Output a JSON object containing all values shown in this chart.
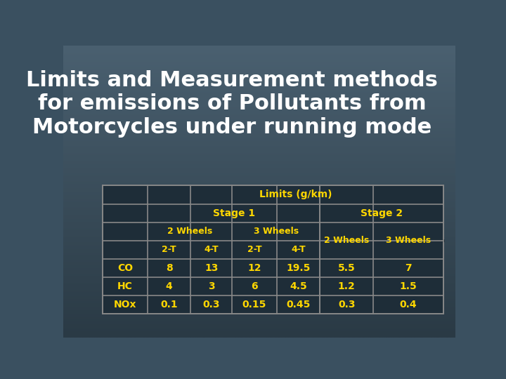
{
  "title": "Limits and Measurement methods\nfor emissions of Pollutants from\nMotorcycles under running mode",
  "title_color": "#FFFFFF",
  "title_fontsize": 22,
  "bg_color_top": "#4a6070",
  "bg_color_bottom": "#2a3a45",
  "table_border_color": "#888888",
  "text_color": "#FFD700",
  "table_bg": "#1e2d38",
  "row_labels": [
    "CO",
    "HC",
    "NOx"
  ],
  "data": [
    [
      "8",
      "13",
      "12",
      "19.5",
      "5.5",
      "7"
    ],
    [
      "4",
      "3",
      "6",
      "4.5",
      "1.2",
      "1.5"
    ],
    [
      "0.1",
      "0.3",
      "0.15",
      "0.45",
      "0.3",
      "0.4"
    ]
  ]
}
